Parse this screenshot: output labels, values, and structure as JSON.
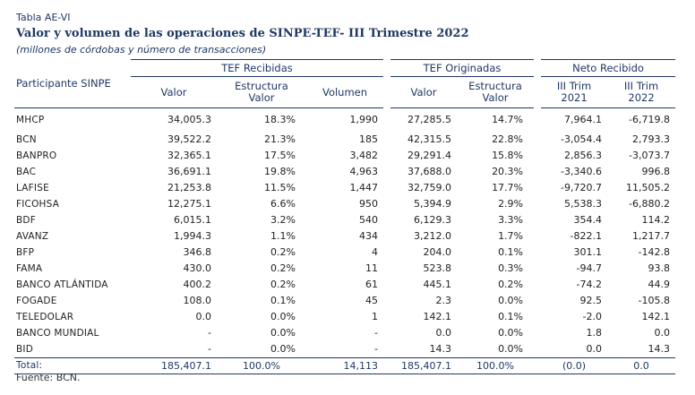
{
  "header": {
    "label": "Tabla AE-VI",
    "title": "Valor y volumen de las operaciones de SINPE-TEF- III Trimestre 2022",
    "subtitle": "(millones de córdobas y número de transacciones)"
  },
  "columns": {
    "participant": "Participante SINPE",
    "group_received": "TEF Recibidas",
    "group_originated": "TEF Originadas",
    "group_net": "Neto Recibido",
    "valor": "Valor",
    "estructura_valor": "Estructura Valor",
    "volumen": "Volumen",
    "trim_2021": "III Trim 2021",
    "trim_2022": "III Trim 2022"
  },
  "rows": [
    {
      "name": "MHCP",
      "rec_valor": "34,005.3",
      "rec_estr": "18.3%",
      "rec_vol": "1,990",
      "org_valor": "27,285.5",
      "org_estr": "14.7%",
      "net_2021": "7,964.1",
      "net_2022": "-6,719.8"
    },
    {
      "name": "BCN",
      "rec_valor": "39,522.2",
      "rec_estr": "21.3%",
      "rec_vol": "185",
      "org_valor": "42,315.5",
      "org_estr": "22.8%",
      "net_2021": "-3,054.4",
      "net_2022": "2,793.3"
    },
    {
      "name": "BANPRO",
      "rec_valor": "32,365.1",
      "rec_estr": "17.5%",
      "rec_vol": "3,482",
      "org_valor": "29,291.4",
      "org_estr": "15.8%",
      "net_2021": "2,856.3",
      "net_2022": "-3,073.7"
    },
    {
      "name": "BAC",
      "rec_valor": "36,691.1",
      "rec_estr": "19.8%",
      "rec_vol": "4,963",
      "org_valor": "37,688.0",
      "org_estr": "20.3%",
      "net_2021": "-3,340.6",
      "net_2022": "996.8"
    },
    {
      "name": "LAFISE",
      "rec_valor": "21,253.8",
      "rec_estr": "11.5%",
      "rec_vol": "1,447",
      "org_valor": "32,759.0",
      "org_estr": "17.7%",
      "net_2021": "-9,720.7",
      "net_2022": "11,505.2"
    },
    {
      "name": "FICOHSA",
      "rec_valor": "12,275.1",
      "rec_estr": "6.6%",
      "rec_vol": "950",
      "org_valor": "5,394.9",
      "org_estr": "2.9%",
      "net_2021": "5,538.3",
      "net_2022": "-6,880.2"
    },
    {
      "name": "BDF",
      "rec_valor": "6,015.1",
      "rec_estr": "3.2%",
      "rec_vol": "540",
      "org_valor": "6,129.3",
      "org_estr": "3.3%",
      "net_2021": "354.4",
      "net_2022": "114.2"
    },
    {
      "name": "AVANZ",
      "rec_valor": "1,994.3",
      "rec_estr": "1.1%",
      "rec_vol": "434",
      "org_valor": "3,212.0",
      "org_estr": "1.7%",
      "net_2021": "-822.1",
      "net_2022": "1,217.7"
    },
    {
      "name": "BFP",
      "rec_valor": "346.8",
      "rec_estr": "0.2%",
      "rec_vol": "4",
      "org_valor": "204.0",
      "org_estr": "0.1%",
      "net_2021": "301.1",
      "net_2022": "-142.8"
    },
    {
      "name": "FAMA",
      "rec_valor": "430.0",
      "rec_estr": "0.2%",
      "rec_vol": "11",
      "org_valor": "523.8",
      "org_estr": "0.3%",
      "net_2021": "-94.7",
      "net_2022": "93.8"
    },
    {
      "name": "BANCO ATLÁNTIDA",
      "rec_valor": "400.2",
      "rec_estr": "0.2%",
      "rec_vol": "61",
      "org_valor": "445.1",
      "org_estr": "0.2%",
      "net_2021": "-74.2",
      "net_2022": "44.9"
    },
    {
      "name": "FOGADE",
      "rec_valor": "108.0",
      "rec_estr": "0.1%",
      "rec_vol": "45",
      "org_valor": "2.3",
      "org_estr": "0.0%",
      "net_2021": "92.5",
      "net_2022": "-105.8"
    },
    {
      "name": "TELEDOLAR",
      "rec_valor": "0.0",
      "rec_estr": "0.0%",
      "rec_vol": "1",
      "org_valor": "142.1",
      "org_estr": "0.1%",
      "net_2021": "-2.0",
      "net_2022": "142.1"
    },
    {
      "name": "BANCO MUNDIAL",
      "rec_valor": "-",
      "rec_estr": "0.0%",
      "rec_vol": "-",
      "org_valor": "0.0",
      "org_estr": "0.0%",
      "net_2021": "1.8",
      "net_2022": "0.0"
    },
    {
      "name": "BID",
      "rec_valor": "-",
      "rec_estr": "0.0%",
      "rec_vol": "-",
      "org_valor": "14.3",
      "org_estr": "0.0%",
      "net_2021": "0.0",
      "net_2022": "14.3"
    }
  ],
  "total": {
    "name": "Total:",
    "rec_valor": "185,407.1",
    "rec_estr": "100.0%",
    "rec_vol": "14,113",
    "org_valor": "185,407.1",
    "org_estr": "100.0%",
    "net_2021": "(0.0)",
    "net_2022": "0.0"
  },
  "source": "Fuente: BCN."
}
